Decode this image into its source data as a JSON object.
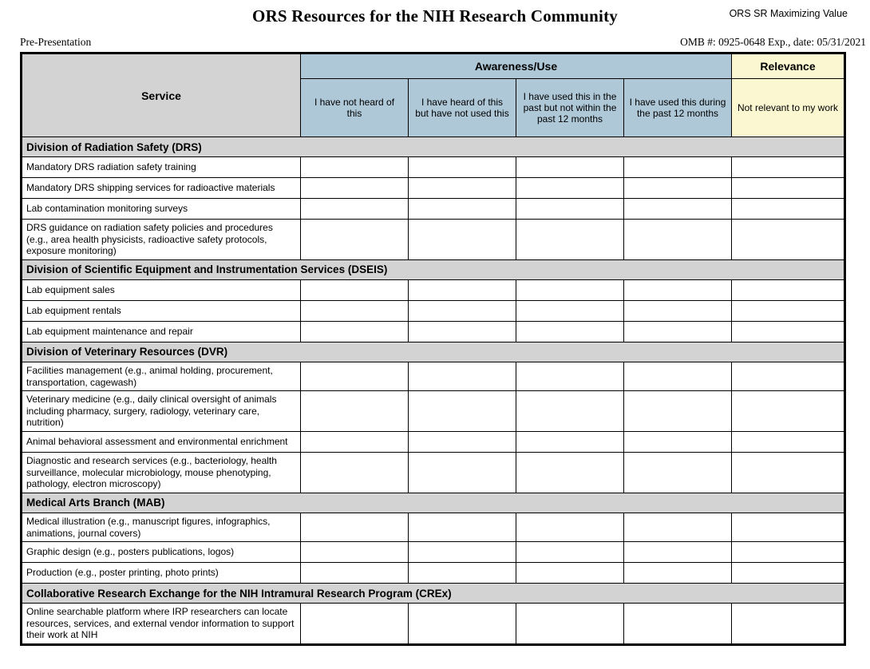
{
  "header": {
    "doc_label": "ORS SR Maximizing Value",
    "title": "ORS Resources for the NIH Research Community",
    "stage_label": "Pre-Presentation",
    "omb_label": "OMB #: 0925-0648 Exp., date: 05/31/2021"
  },
  "table": {
    "service_header": "Service",
    "groups": [
      {
        "label": "Awareness/Use",
        "span": 4,
        "color": "#aec8d8"
      },
      {
        "label": "Relevance",
        "span": 1,
        "color": "#fbf7d0"
      }
    ],
    "answer_columns": [
      {
        "label": "I have not heard of this",
        "group": "Awareness/Use",
        "color": "#aec8d8"
      },
      {
        "label": "I have heard of this but have not used this",
        "group": "Awareness/Use",
        "color": "#aec8d8"
      },
      {
        "label": "I have used this in the past but not within the past 12 months",
        "group": "Awareness/Use",
        "color": "#aec8d8"
      },
      {
        "label": "I have used this during the past 12 months",
        "group": "Awareness/Use",
        "color": "#aec8d8"
      },
      {
        "label": "Not relevant to my work",
        "group": "Relevance",
        "color": "#fbf7d0"
      }
    ],
    "sections": [
      {
        "title": "Division of Radiation Safety (DRS)",
        "rows": [
          "Mandatory DRS radiation safety training",
          "Mandatory DRS shipping services for radioactive materials",
          "Lab contamination monitoring surveys",
          "DRS guidance on radiation safety policies and procedures (e.g., area health physicists, radioactive safety protocols, exposure monitoring)"
        ]
      },
      {
        "title": "Division of Scientific Equipment and Instrumentation Services (DSEIS)",
        "rows": [
          "Lab equipment sales",
          "Lab equipment rentals",
          "Lab equipment maintenance and repair"
        ]
      },
      {
        "title": "Division of Veterinary Resources (DVR)",
        "rows": [
          "Facilities management (e.g., animal holding, procurement, transportation, cagewash)",
          "Veterinary medicine (e.g., daily clinical oversight of animals including pharmacy, surgery, radiology, veterinary care, nutrition)",
          "Animal behavioral assessment and environmental enrichment",
          "Diagnostic and research services (e.g., bacteriology, health surveillance, molecular microbiology, mouse phenotyping, pathology, electron microscopy)"
        ]
      },
      {
        "title": "Medical Arts Branch (MAB)",
        "rows": [
          "Medical illustration (e.g., manuscript figures, infographics, animations, journal covers)",
          "Graphic design (e.g., posters publications, logos)",
          "Production (e.g., poster printing, photo prints)"
        ]
      },
      {
        "title": "Collaborative Research Exchange for the NIH Intramural Research Program (CREx)",
        "rows": [
          "Online searchable platform where IRP researchers can locate resources, services, and external vendor information to support their work at NIH"
        ]
      }
    ],
    "colors": {
      "section_bg": "#d3d3d3",
      "service_header_bg": "#d3d3d3",
      "awareness_bg": "#aec8d8",
      "relevance_bg": "#fbf7d0",
      "border": "#000000"
    }
  }
}
